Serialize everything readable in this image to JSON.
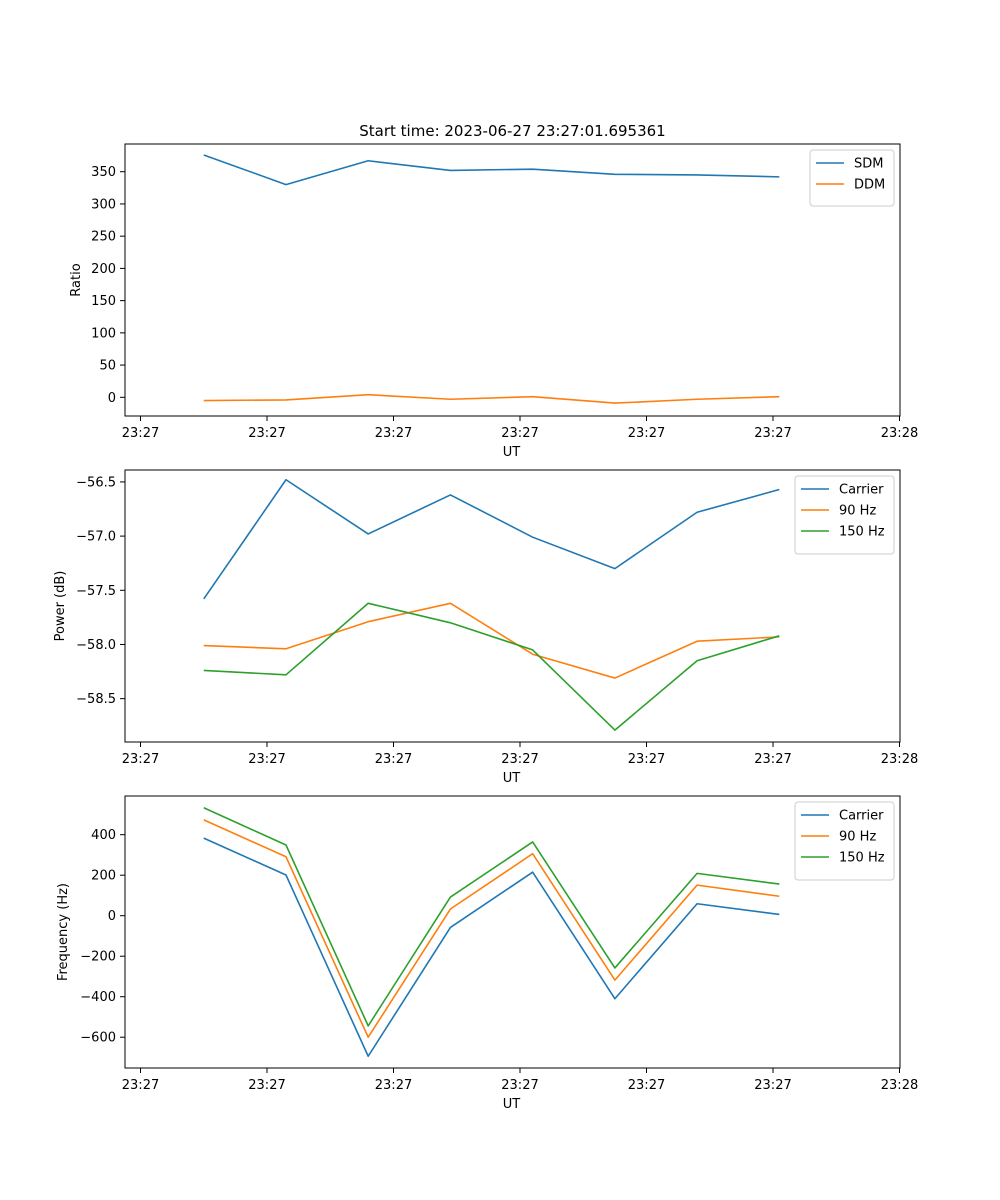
{
  "figure": {
    "title": "Start time: 2023-06-27 23:27:01.695361"
  },
  "chart_data": [
    {
      "type": "line",
      "title": "Start time: 2023-06-27 23:27:01.695361",
      "xlabel": "UT",
      "ylabel": "Ratio",
      "x_tick_labels": [
        "23:27",
        "23:27",
        "23:27",
        "23:27",
        "23:27",
        "23:27",
        "23:28"
      ],
      "xlim": [
        0,
        6
      ],
      "x": [
        0.5,
        1.15,
        1.8,
        2.45,
        3.1,
        3.75,
        4.4,
        5.05
      ],
      "ylim": [
        -29,
        393
      ],
      "y_ticks": [
        0,
        50,
        100,
        150,
        200,
        250,
        300,
        350
      ],
      "legend_position": "top-right",
      "grid": false,
      "series": [
        {
          "name": "SDM",
          "color": "#1f77b4",
          "values": [
            376,
            330,
            367,
            352,
            354,
            346,
            345,
            342
          ]
        },
        {
          "name": "DDM",
          "color": "#ff7f0e",
          "values": [
            -5,
            -4,
            4,
            -3,
            1,
            -9,
            -3,
            1
          ]
        }
      ]
    },
    {
      "type": "line",
      "xlabel": "UT",
      "ylabel": "Power (dB)",
      "x_tick_labels": [
        "23:27",
        "23:27",
        "23:27",
        "23:27",
        "23:27",
        "23:27",
        "23:28"
      ],
      "xlim": [
        0,
        6
      ],
      "x": [
        0.5,
        1.15,
        1.8,
        2.45,
        3.1,
        3.75,
        4.4,
        5.05
      ],
      "ylim": [
        -58.9,
        -56.39
      ],
      "y_ticks": [
        -58.5,
        -58.0,
        -57.5,
        -57.0,
        -56.5
      ],
      "y_tick_labels": [
        "−58.5",
        "−58.0",
        "−57.5",
        "−57.0",
        "−56.5"
      ],
      "legend_position": "top-right",
      "grid": false,
      "series": [
        {
          "name": "Carrier",
          "color": "#1f77b4",
          "values": [
            -57.58,
            -56.48,
            -56.98,
            -56.62,
            -57.01,
            -57.3,
            -56.78,
            -56.57
          ]
        },
        {
          "name": "90 Hz",
          "color": "#ff7f0e",
          "values": [
            -58.01,
            -58.04,
            -57.79,
            -57.62,
            -58.09,
            -58.31,
            -57.97,
            -57.93
          ]
        },
        {
          "name": "150 Hz",
          "color": "#2ca02c",
          "values": [
            -58.24,
            -58.28,
            -57.62,
            -57.8,
            -58.05,
            -58.79,
            -58.15,
            -57.92
          ]
        }
      ]
    },
    {
      "type": "line",
      "xlabel": "UT",
      "ylabel": "Frequency (Hz)",
      "x_tick_labels": [
        "23:27",
        "23:27",
        "23:27",
        "23:27",
        "23:27",
        "23:27",
        "23:28"
      ],
      "xlim": [
        0,
        6
      ],
      "x": [
        0.5,
        1.15,
        1.8,
        2.45,
        3.1,
        3.75,
        4.4,
        5.05
      ],
      "ylim": [
        -752,
        591
      ],
      "y_ticks": [
        -600,
        -400,
        -200,
        0,
        200,
        400
      ],
      "y_tick_labels": [
        "−600",
        "−400",
        "−200",
        "0",
        "200",
        "400"
      ],
      "legend_position": "top-right",
      "grid": false,
      "series": [
        {
          "name": "Carrier",
          "color": "#1f77b4",
          "values": [
            383,
            201,
            -694,
            -58,
            215,
            -410,
            59,
            6
          ]
        },
        {
          "name": "90 Hz",
          "color": "#ff7f0e",
          "values": [
            473,
            291,
            -600,
            33,
            306,
            -318,
            151,
            96
          ]
        },
        {
          "name": "150 Hz",
          "color": "#2ca02c",
          "values": [
            533,
            349,
            -544,
            92,
            364,
            -258,
            209,
            156
          ]
        }
      ]
    }
  ]
}
